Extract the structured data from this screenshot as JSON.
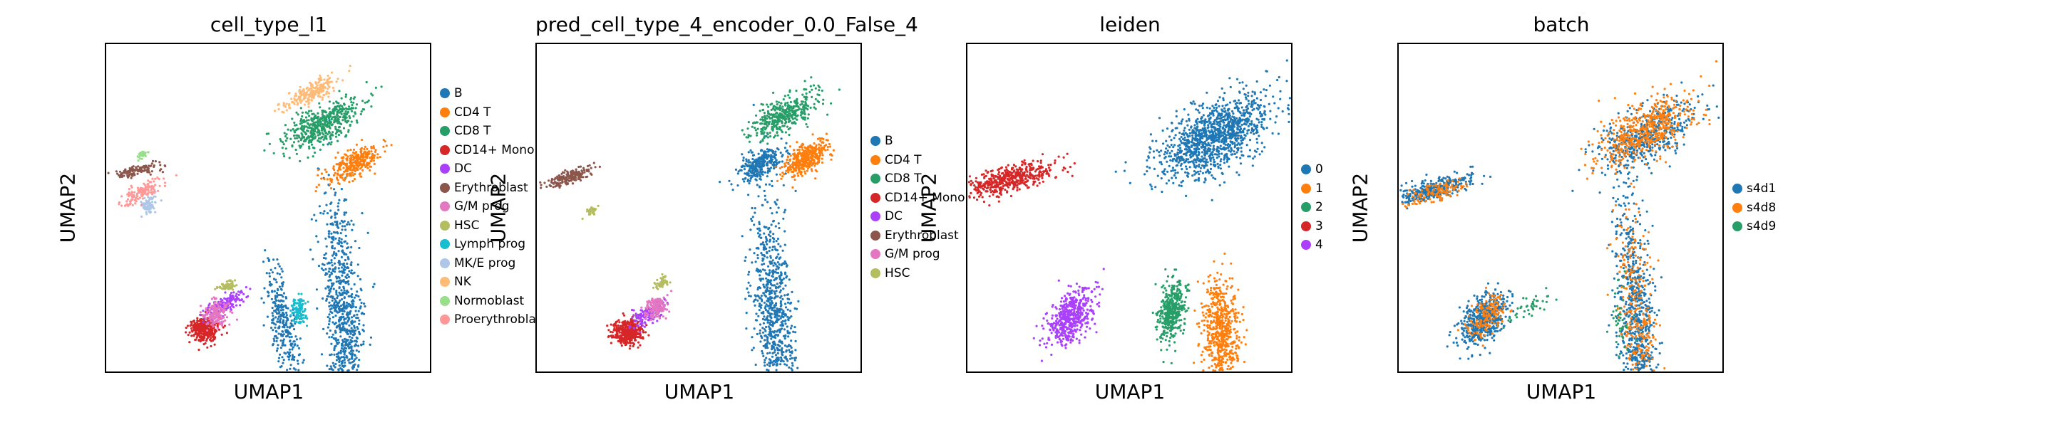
{
  "chart_data": [
    {
      "type": "scatter",
      "title": "cell_type_l1",
      "xlabel": "UMAP1",
      "ylabel": "UMAP2",
      "grid": false,
      "legend_placement": "right-outside",
      "series": [
        {
          "name": "B",
          "color": "#1f77b4",
          "clusters": [
            [
              75,
              12,
              3,
              20,
              5,
              900
            ],
            [
              55,
              12,
              2,
              9,
              12,
              300
            ]
          ]
        },
        {
          "name": "CD4 T",
          "color": "#ff7f0e",
          "clusters": [
            [
              78,
              64,
              2.2,
              5,
              -60,
              300
            ]
          ]
        },
        {
          "name": "CD8 T",
          "color": "#279e68",
          "clusters": [
            [
              68,
              77,
              3,
              7,
              -60,
              500
            ]
          ]
        },
        {
          "name": "CD14+ Mono",
          "color": "#d62728",
          "clusters": [
            [
              29,
              11,
              2.5,
              2,
              0,
              350
            ]
          ]
        },
        {
          "name": "DC",
          "color": "#aa40fc",
          "clusters": [
            [
              36,
              19,
              1.2,
              4,
              -60,
              160
            ]
          ]
        },
        {
          "name": "Erythroblast",
          "color": "#8c564b",
          "clusters": [
            [
              7,
              62,
              1,
              4,
              -80,
              120
            ]
          ]
        },
        {
          "name": "G/M prog",
          "color": "#e377c2",
          "clusters": [
            [
              33,
              16,
              2,
              2,
              -50,
              160
            ]
          ]
        },
        {
          "name": "HSC",
          "color": "#b5bd61",
          "clusters": [
            [
              37,
              25,
              0.8,
              1.5,
              -70,
              60
            ]
          ]
        },
        {
          "name": "Lymph prog",
          "color": "#17becf",
          "clusters": [
            [
              60,
              17,
              1.2,
              2,
              0,
              120
            ]
          ]
        },
        {
          "name": "MK/E prog",
          "color": "#aec7e8",
          "clusters": [
            [
              11,
              51,
              1.1,
              1.8,
              -40,
              80
            ]
          ]
        },
        {
          "name": "NK",
          "color": "#ffbb78",
          "clusters": [
            [
              64,
              87,
              1.5,
              5,
              -60,
              220
            ]
          ]
        },
        {
          "name": "Normoblast",
          "color": "#98df8a",
          "clusters": [
            [
              9,
              67,
              0.6,
              1,
              -60,
              30
            ]
          ]
        },
        {
          "name": "Proerythroblast",
          "color": "#ff9896",
          "clusters": [
            [
              9,
              55,
              1.3,
              3.5,
              -60,
              140
            ]
          ]
        }
      ]
    },
    {
      "type": "scatter",
      "title": "pred_cell_type_4_encoder_0.0_False_4",
      "xlabel": "UMAP1",
      "ylabel": "UMAP2",
      "grid": false,
      "legend_placement": "right-outside",
      "series": [
        {
          "name": "B",
          "color": "#1f77b4",
          "clusters": [
            [
              75,
              12,
              3,
              20,
              5,
              900
            ],
            [
              70,
              64,
              2,
              4,
              -60,
              300
            ]
          ]
        },
        {
          "name": "CD4 T",
          "color": "#ff7f0e",
          "clusters": [
            [
              85,
              66,
              2,
              4,
              -60,
              400
            ]
          ]
        },
        {
          "name": "CD8 T",
          "color": "#279e68",
          "clusters": [
            [
              78,
              80,
              2.5,
              6,
              -60,
              400
            ]
          ]
        },
        {
          "name": "CD14+ Mono",
          "color": "#d62728",
          "clusters": [
            [
              27,
              10,
              2.5,
              2,
              0,
              400
            ]
          ]
        },
        {
          "name": "DC",
          "color": "#aa40fc",
          "clusters": [
            [
              34,
              16,
              1.5,
              3,
              -60,
              150
            ]
          ]
        },
        {
          "name": "Erythroblast",
          "color": "#8c564b",
          "clusters": [
            [
              8,
              60,
              1,
              4,
              -70,
              200
            ]
          ]
        },
        {
          "name": "G/M prog",
          "color": "#e377c2",
          "clusters": [
            [
              36,
              18,
              1.5,
              2,
              -60,
              150
            ]
          ]
        },
        {
          "name": "HSC",
          "color": "#b5bd61",
          "clusters": [
            [
              38,
              26,
              0.8,
              1.5,
              -60,
              60
            ],
            [
              15,
              49,
              0.6,
              1,
              -60,
              40
            ]
          ]
        }
      ]
    },
    {
      "type": "scatter",
      "title": "leiden",
      "xlabel": "UMAP1",
      "ylabel": "UMAP2",
      "grid": false,
      "legend_placement": "right-outside",
      "series": [
        {
          "name": "0",
          "color": "#1f77b4",
          "clusters": [
            [
              78,
              73,
              5,
              10,
              -60,
              1200
            ]
          ]
        },
        {
          "name": "1",
          "color": "#ff7f0e",
          "clusters": [
            [
              80,
              11,
              3,
              8,
              5,
              600
            ]
          ]
        },
        {
          "name": "2",
          "color": "#279e68",
          "clusters": [
            [
              64,
              17,
              2,
              5,
              -10,
              400
            ]
          ]
        },
        {
          "name": "3",
          "color": "#d62728",
          "clusters": [
            [
              10,
              59,
              2,
              8,
              -75,
              500
            ]
          ]
        },
        {
          "name": "4",
          "color": "#aa40fc",
          "clusters": [
            [
              31,
              15,
              3,
              5,
              -40,
              500
            ]
          ]
        }
      ]
    },
    {
      "type": "scatter",
      "title": "batch",
      "xlabel": "UMAP1",
      "ylabel": "UMAP2",
      "grid": false,
      "legend_placement": "right-outside",
      "series": [
        {
          "name": "s4d1",
          "color": "#1f77b4",
          "clusters": [
            [
              75,
              12,
              3,
              20,
              5,
              800
            ],
            [
              25,
              14,
              3,
              5,
              -40,
              500
            ],
            [
              8,
              56,
              1.6,
              7,
              -75,
              350
            ],
            [
              78,
              73,
              4,
              9,
              -60,
              500
            ]
          ]
        },
        {
          "name": "s4d8",
          "color": "#ff7f0e",
          "clusters": [
            [
              78,
              75,
              4,
              9,
              -60,
              500
            ],
            [
              75,
              13,
              3,
              18,
              5,
              300
            ],
            [
              26,
              15,
              2.5,
              4,
              -40,
              150
            ],
            [
              9,
              55,
              1.5,
              6,
              -75,
              120
            ]
          ]
        },
        {
          "name": "s4d9",
          "color": "#279e68",
          "clusters": [
            [
              40,
              18,
              2,
              4,
              -60,
              40
            ],
            [
              70,
              12,
              2,
              8,
              5,
              40
            ]
          ]
        }
      ]
    }
  ]
}
